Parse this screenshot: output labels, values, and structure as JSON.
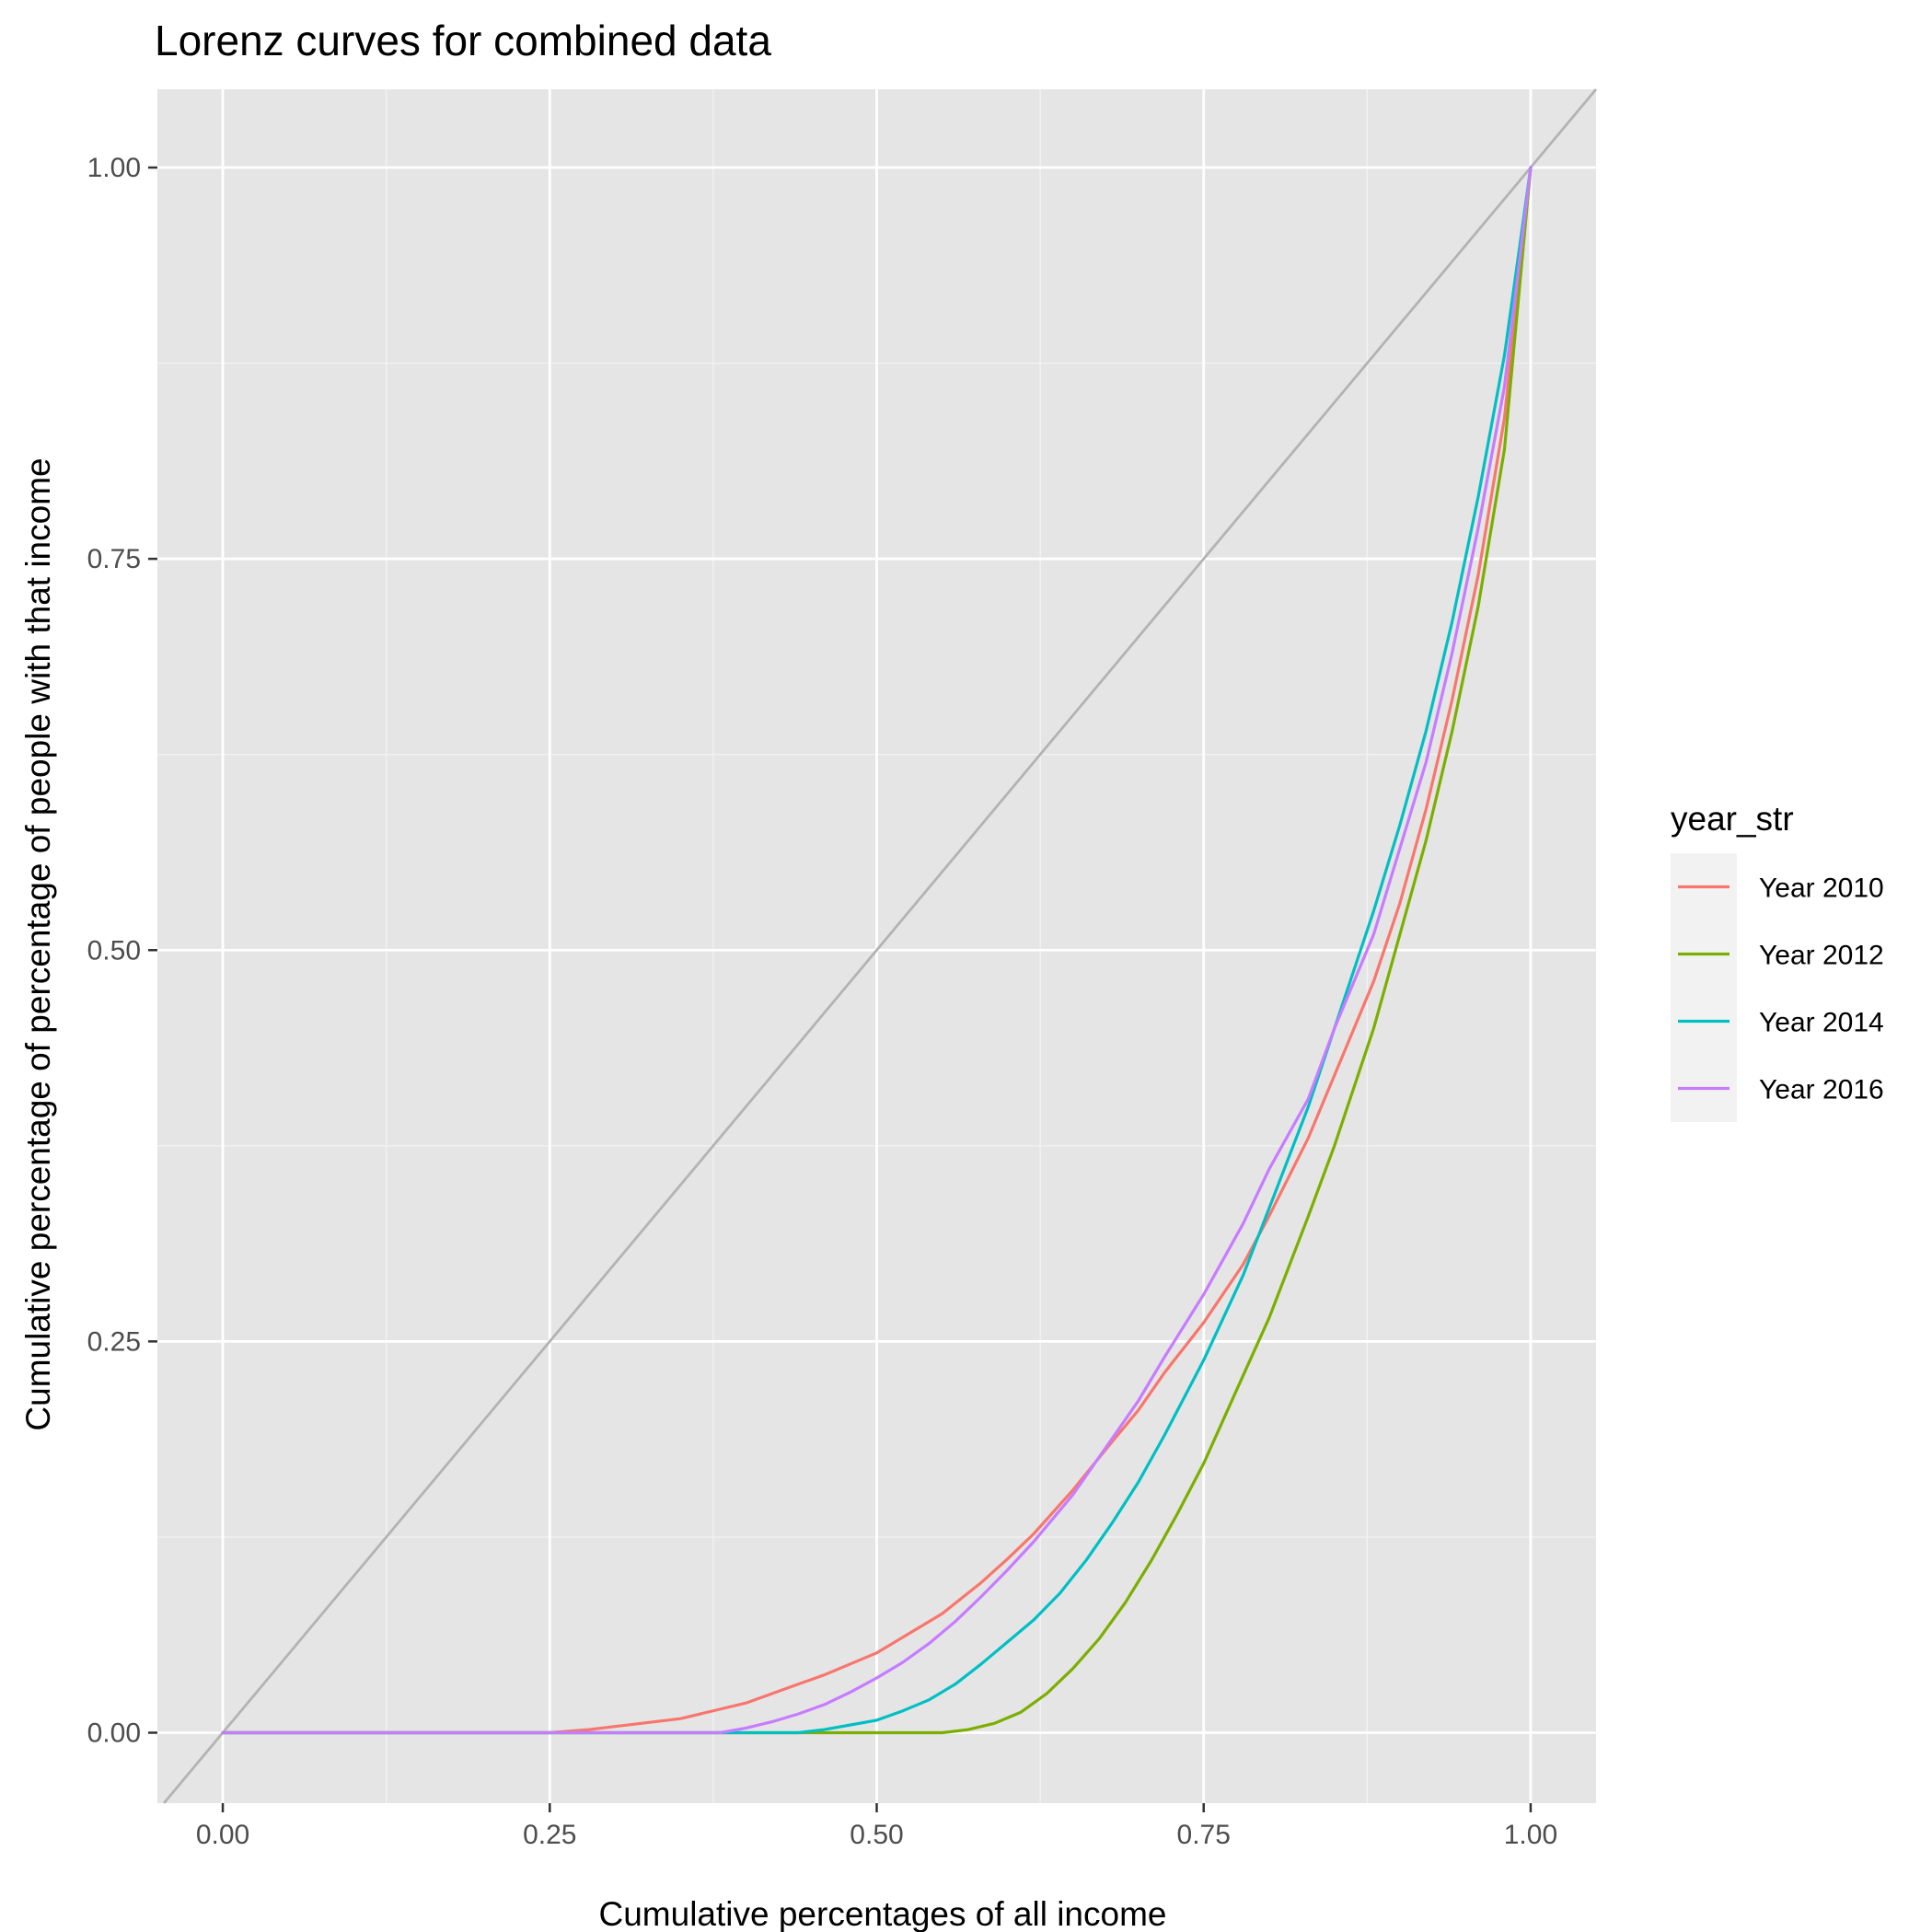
{
  "chart_data": {
    "type": "line",
    "title": "Lorenz curves for combined data",
    "xlabel": "Cumulative percentages of all income",
    "ylabel": "Cumulative percentage of percentage of people with that income",
    "xlim": [
      -0.05,
      1.05
    ],
    "ylim": [
      -0.045,
      1.05
    ],
    "x_ticks": [
      "0.00",
      "0.25",
      "0.50",
      "0.75",
      "1.00"
    ],
    "y_ticks": [
      "0.00",
      "0.25",
      "0.50",
      "0.75",
      "1.00"
    ],
    "grid": true,
    "panel_background": "#E5E5E5",
    "legend": {
      "title": "year_str",
      "position": "right"
    },
    "reference_line": {
      "x": [
        0,
        1.05
      ],
      "y": [
        0,
        1.05
      ],
      "color": "#B3B3B3"
    },
    "series": [
      {
        "name": "Year 2010",
        "color": "#F8766D",
        "x": [
          0.0,
          0.25,
          0.28,
          0.3,
          0.32,
          0.35,
          0.38,
          0.4,
          0.42,
          0.44,
          0.46,
          0.48,
          0.5,
          0.52,
          0.55,
          0.58,
          0.6,
          0.62,
          0.65,
          0.68,
          0.7,
          0.72,
          0.75,
          0.78,
          0.8,
          0.83,
          0.85,
          0.88,
          0.9,
          0.92,
          0.94,
          0.96,
          0.98,
          1.0
        ],
        "y": [
          0.0,
          0.0,
          0.002,
          0.004,
          0.006,
          0.009,
          0.015,
          0.019,
          0.025,
          0.031,
          0.037,
          0.044,
          0.051,
          0.061,
          0.076,
          0.096,
          0.111,
          0.127,
          0.155,
          0.186,
          0.206,
          0.23,
          0.262,
          0.299,
          0.33,
          0.38,
          0.42,
          0.48,
          0.53,
          0.59,
          0.66,
          0.74,
          0.84,
          1.0
        ]
      },
      {
        "name": "Year 2012",
        "color": "#7CAE00",
        "x": [
          0.0,
          0.55,
          0.57,
          0.59,
          0.61,
          0.63,
          0.65,
          0.67,
          0.69,
          0.71,
          0.73,
          0.75,
          0.78,
          0.8,
          0.83,
          0.85,
          0.88,
          0.9,
          0.92,
          0.94,
          0.96,
          0.98,
          1.0
        ],
        "y": [
          0.0,
          0.0,
          0.002,
          0.006,
          0.013,
          0.025,
          0.041,
          0.06,
          0.083,
          0.11,
          0.14,
          0.172,
          0.228,
          0.265,
          0.33,
          0.375,
          0.45,
          0.51,
          0.57,
          0.64,
          0.72,
          0.82,
          1.0
        ]
      },
      {
        "name": "Year 2014",
        "color": "#00BFC4",
        "x": [
          0.0,
          0.44,
          0.46,
          0.48,
          0.5,
          0.52,
          0.54,
          0.56,
          0.58,
          0.6,
          0.62,
          0.64,
          0.66,
          0.68,
          0.7,
          0.72,
          0.75,
          0.78,
          0.8,
          0.83,
          0.85,
          0.88,
          0.9,
          0.92,
          0.94,
          0.96,
          0.98,
          1.0
        ],
        "y": [
          0.0,
          0.0,
          0.002,
          0.005,
          0.008,
          0.014,
          0.021,
          0.031,
          0.044,
          0.058,
          0.072,
          0.089,
          0.11,
          0.134,
          0.16,
          0.19,
          0.238,
          0.292,
          0.335,
          0.4,
          0.45,
          0.525,
          0.58,
          0.64,
          0.71,
          0.79,
          0.88,
          1.0
        ]
      },
      {
        "name": "Year 2016",
        "color": "#C77CFF",
        "x": [
          0.0,
          0.38,
          0.4,
          0.42,
          0.44,
          0.46,
          0.48,
          0.5,
          0.52,
          0.54,
          0.56,
          0.58,
          0.6,
          0.62,
          0.65,
          0.68,
          0.7,
          0.72,
          0.75,
          0.78,
          0.8,
          0.83,
          0.85,
          0.88,
          0.9,
          0.92,
          0.94,
          0.96,
          0.98,
          1.0
        ],
        "y": [
          0.0,
          0.0,
          0.003,
          0.007,
          0.012,
          0.018,
          0.026,
          0.035,
          0.045,
          0.057,
          0.071,
          0.087,
          0.104,
          0.122,
          0.152,
          0.188,
          0.212,
          0.24,
          0.28,
          0.325,
          0.36,
          0.405,
          0.45,
          0.51,
          0.565,
          0.62,
          0.69,
          0.77,
          0.86,
          1.0
        ]
      }
    ]
  }
}
